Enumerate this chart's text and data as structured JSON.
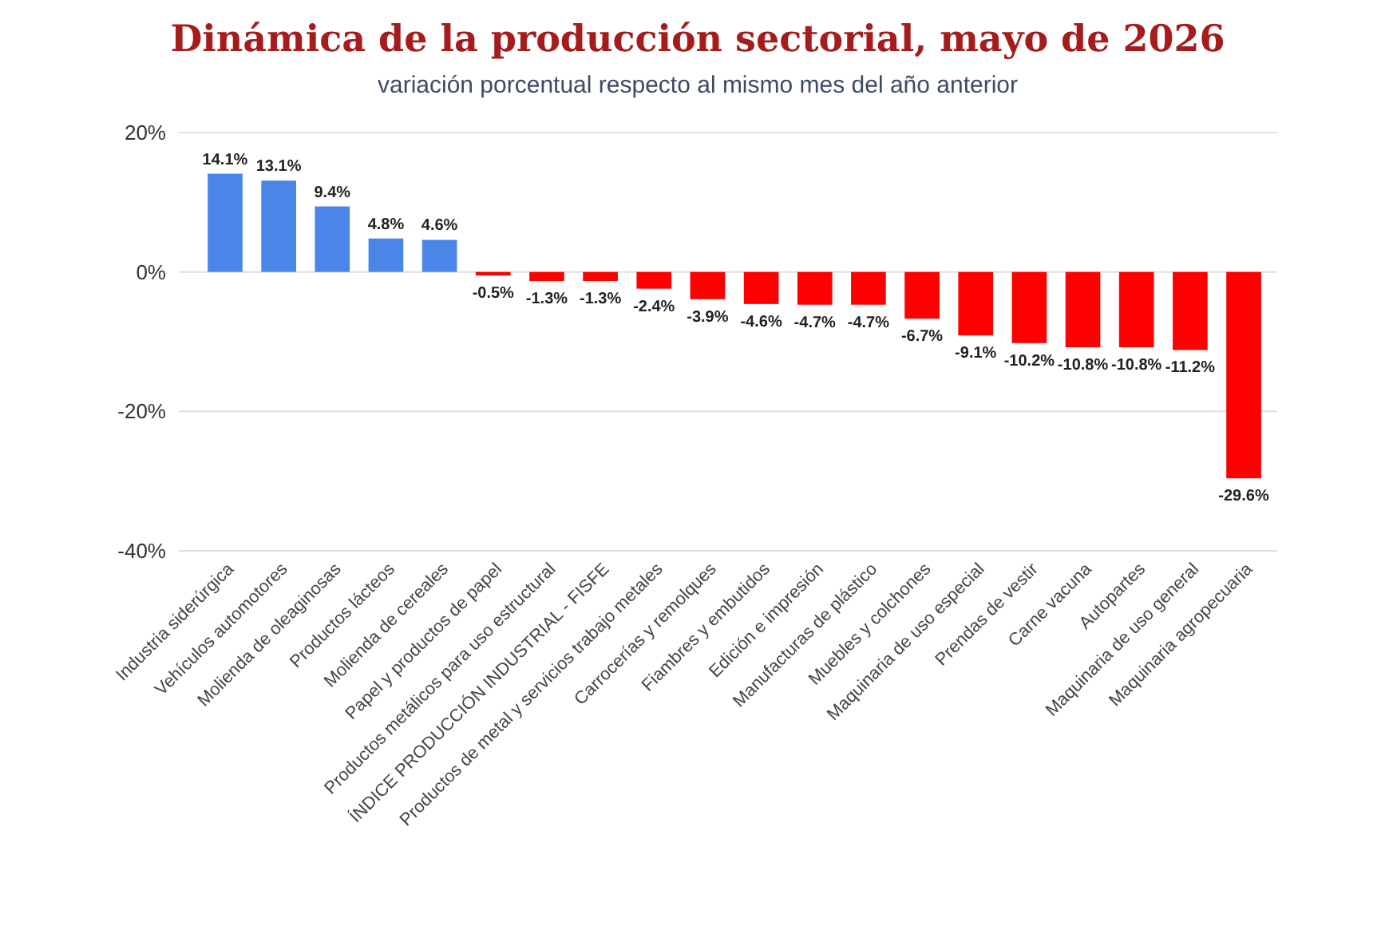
{
  "chart_data": {
    "type": "bar",
    "title": "Dinámica de la producción sectorial, mayo de 2026",
    "subtitle": "variación porcentual respecto al mismo mes del año anterior",
    "categories": [
      "Industria siderúrgica",
      "Vehículos automotores",
      "Molienda de oleaginosas",
      "Productos lácteos",
      "Molienda de cereales",
      "Papel y productos de papel",
      "Productos metálicos para uso estructural",
      "ÍNDICE PRODUCCIÓN INDUSTRIAL - FISFE",
      "Productos de metal y servicios trabajo metales",
      "Carrocerías y remolques",
      "Fiambres y embutidos",
      "Edición e impresión",
      "Manufacturas de plástico",
      "Muebles y colchones",
      "Maquinaria de uso especial",
      "Prendas de vestir",
      "Carne vacuna",
      "Autopartes",
      "Maquinaria de uso general",
      "Maquinaria agropecuaria"
    ],
    "values": [
      14.1,
      13.1,
      9.4,
      4.8,
      4.6,
      -0.5,
      -1.3,
      -1.3,
      -2.4,
      -3.9,
      -4.6,
      -4.7,
      -4.7,
      -6.7,
      -9.1,
      -10.2,
      -10.8,
      -10.8,
      -11.2,
      -29.6
    ],
    "value_labels": [
      "14.1%",
      "13.1%",
      "9.4%",
      "4.8%",
      "4.6%",
      "-0.5%",
      "-1.3%",
      "-1.3%",
      "-2.4%",
      "-3.9%",
      "-4.6%",
      "-4.7%",
      "-4.7%",
      "-6.7%",
      "-9.1%",
      "-10.2%",
      "-10.8%",
      "-10.8%",
      "-11.2%",
      "-29.6%"
    ],
    "colors": [
      "#4a86e8",
      "#4a86e8",
      "#4a86e8",
      "#4a86e8",
      "#4a86e8",
      "#ff0000",
      "#ff0000",
      "#ff0000",
      "#ff0000",
      "#ff0000",
      "#ff0000",
      "#ff0000",
      "#ff0000",
      "#ff0000",
      "#ff0000",
      "#ff0000",
      "#ff0000",
      "#ff0000",
      "#ff0000",
      "#ff0000"
    ],
    "ylim": [
      -40,
      20
    ],
    "yticks": [
      {
        "value": -40,
        "label": "-40%"
      },
      {
        "value": -20,
        "label": "-20%"
      },
      {
        "value": 0,
        "label": "0%"
      },
      {
        "value": 20,
        "label": "20%"
      }
    ],
    "grid": "y"
  }
}
